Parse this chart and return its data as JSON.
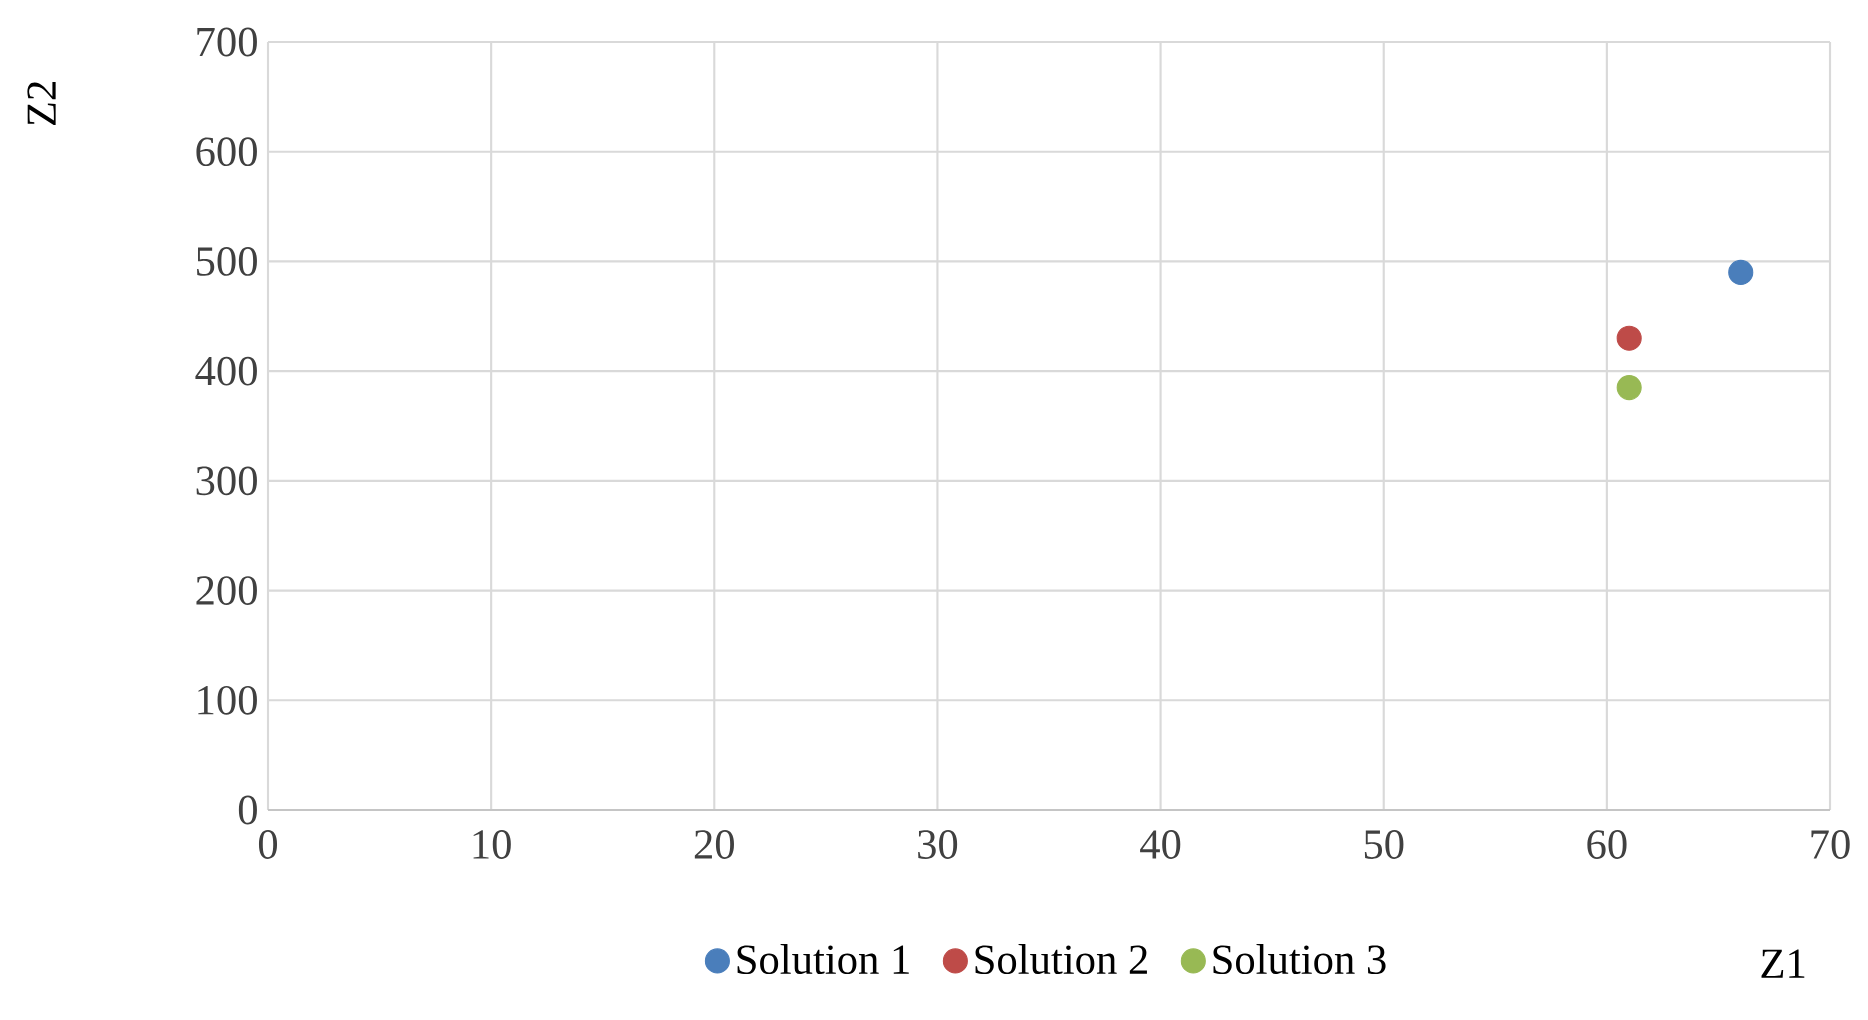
{
  "chart_data": {
    "type": "scatter",
    "xlabel": "Z1",
    "ylabel": "Z2",
    "x": [
      61,
      66
    ],
    "series": [
      {
        "name": "Solution 1",
        "color": "#4a7ebb",
        "values": [
          null,
          490
        ]
      },
      {
        "name": "Solution 2",
        "color": "#be4b48",
        "values": [
          430,
          null
        ]
      },
      {
        "name": "Solution 3",
        "color": "#98b954",
        "values": [
          385,
          null
        ]
      }
    ],
    "xlim": [
      0,
      70
    ],
    "xticks": [
      0,
      10,
      20,
      30,
      40,
      50,
      60,
      70
    ],
    "ylim": [
      0,
      700
    ],
    "yticks": [
      0,
      100,
      200,
      300,
      400,
      500,
      600,
      700
    ],
    "grid": true,
    "legend": "bottom",
    "marker": "circle"
  }
}
